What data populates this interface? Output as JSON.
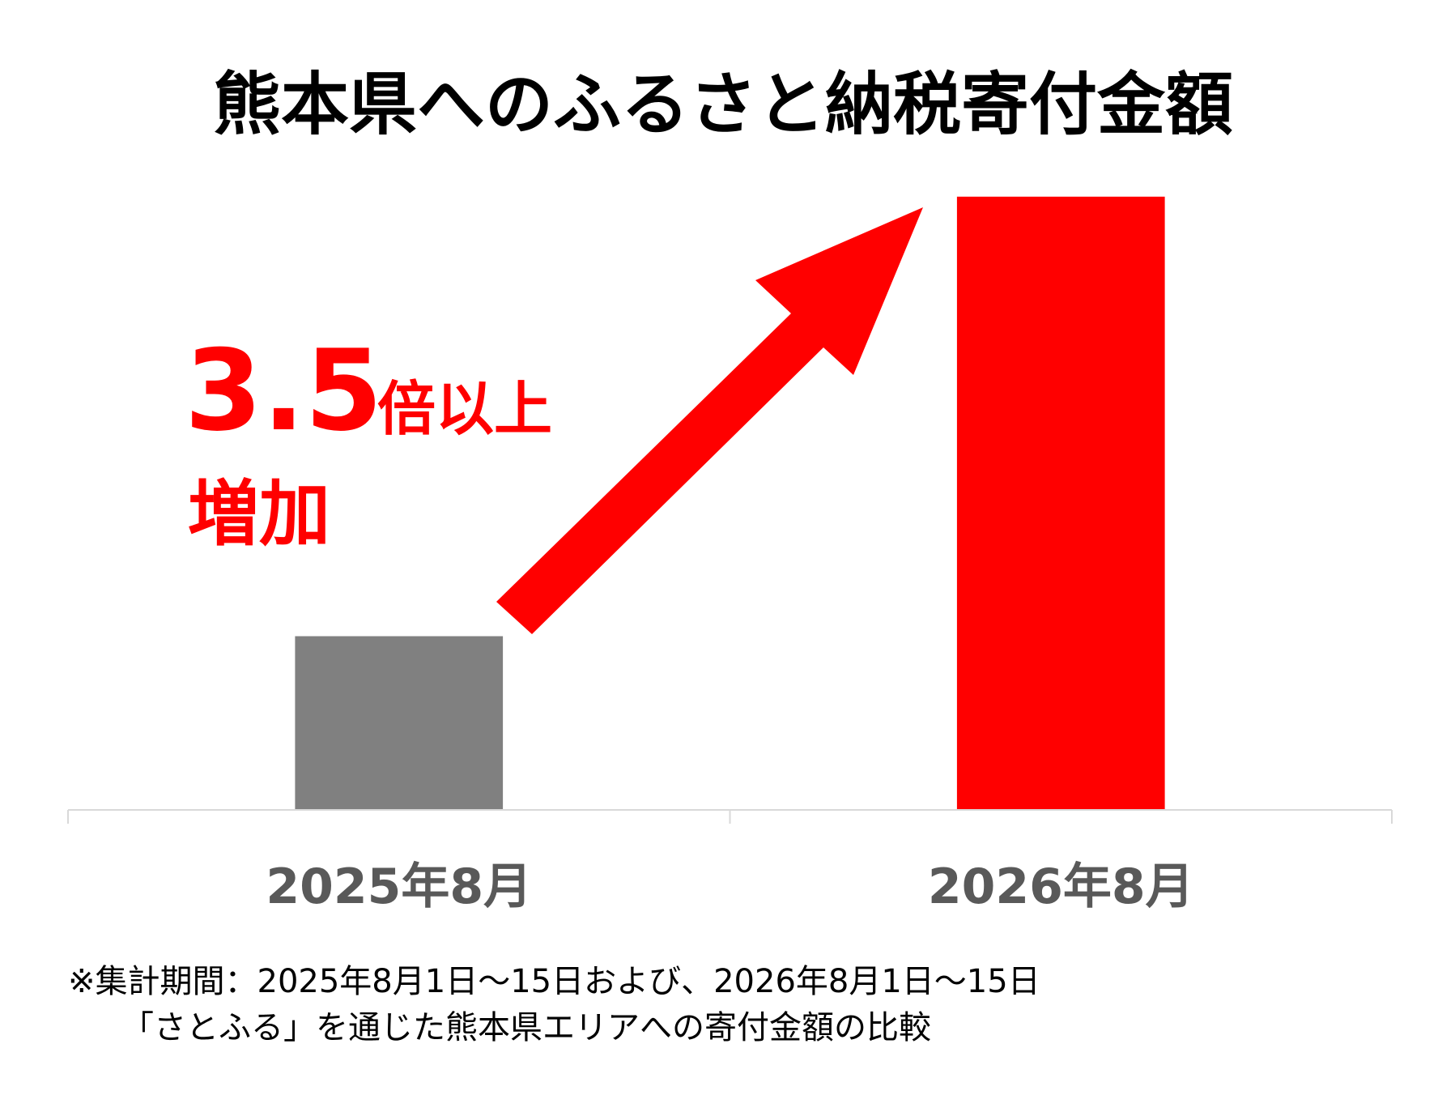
{
  "chart_data": {
    "type": "bar",
    "title": "熊本県へのふるさと納税寄付金額",
    "categories": [
      "2025年8月",
      "2026年8月"
    ],
    "values": [
      1,
      3.53
    ],
    "colors": [
      "#808080",
      "#ff0000"
    ],
    "ylim": [
      0,
      4
    ],
    "annotations": [
      "3.5",
      "倍以上",
      "増加"
    ],
    "notes": [
      "※集計期間：2025年8月1日～15日および、2026年8月1日～15日",
      "「さとふる」を通じた熊本県エリアへの寄付金額の比較"
    ]
  }
}
